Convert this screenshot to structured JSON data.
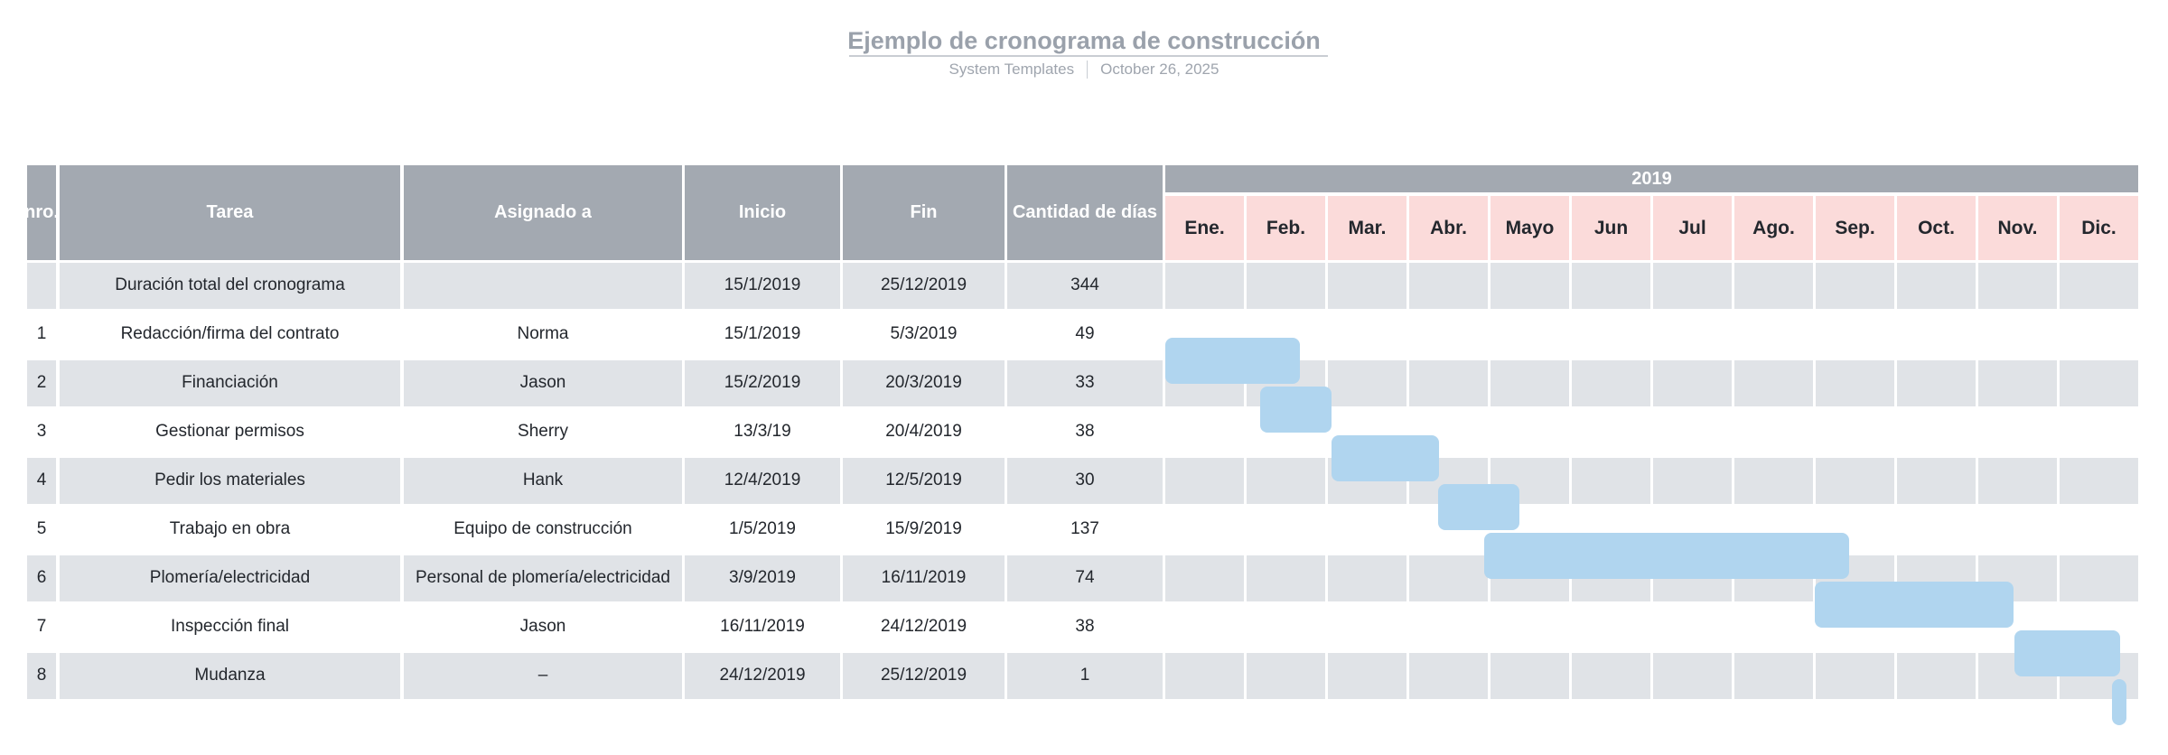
{
  "header": {
    "title": "Ejemplo de cronograma de construcción",
    "byline": "System Templates",
    "date": "October 26, 2025"
  },
  "colors": {
    "header_bg": "#a3a9b1",
    "header_text": "#ffffff",
    "month_bg": "#fbdbda",
    "row_alt_bg": "#e0e3e7",
    "bar": "#b0d5ef",
    "title_text": "#9aa1ab",
    "subtitle_text": "#9fa5ae",
    "divider": "#c9cdd3",
    "body_text": "#23272d"
  },
  "chart_data": {
    "type": "gantt",
    "title": "Ejemplo de cronograma de construcción",
    "year_label": "2019",
    "columns": [
      "nro.",
      "Tarea",
      "Asignado a",
      "Inicio",
      "Fin",
      "Cantidad de días"
    ],
    "months": [
      "Ene.",
      "Feb.",
      "Mar.",
      "Abr.",
      "Mayo",
      "Jun",
      "Jul",
      "Ago.",
      "Sep.",
      "Oct.",
      "Nov.",
      "Dic."
    ],
    "rows": [
      {
        "nro": "",
        "tarea": "Duración total del cronograma",
        "asignado": "",
        "inicio": "15/1/2019",
        "fin": "25/12/2019",
        "dias": "344",
        "bar": null
      },
      {
        "nro": "1",
        "tarea": "Redacción/firma del contrato",
        "asignado": "Norma",
        "inicio": "15/1/2019",
        "fin": "5/3/2019",
        "dias": "49",
        "bar": {
          "start_month": 0.0,
          "end_month": 1.66
        }
      },
      {
        "nro": "2",
        "tarea": "Financiación",
        "asignado": "Jason",
        "inicio": "15/2/2019",
        "fin": "20/3/2019",
        "dias": "33",
        "bar": {
          "start_month": 1.17,
          "end_month": 2.04
        }
      },
      {
        "nro": "3",
        "tarea": "Gestionar permisos",
        "asignado": "Sherry",
        "inicio": "13/3/19",
        "fin": "20/4/2019",
        "dias": "38",
        "bar": {
          "start_month": 2.04,
          "end_month": 3.37
        }
      },
      {
        "nro": "4",
        "tarea": "Pedir los materiales",
        "asignado": "Hank",
        "inicio": "12/4/2019",
        "fin": "12/5/2019",
        "dias": "30",
        "bar": {
          "start_month": 3.36,
          "end_month": 4.36
        }
      },
      {
        "nro": "5",
        "tarea": "Trabajo en obra",
        "asignado": "Equipo de construcción",
        "inicio": "1/5/2019",
        "fin": "15/9/2019",
        "dias": "137",
        "bar": {
          "start_month": 3.92,
          "end_month": 8.41
        }
      },
      {
        "nro": "6",
        "tarea": "Plomería/electricidad",
        "asignado": "Personal de plomería/electricidad",
        "inicio": "3/9/2019",
        "fin": "16/11/2019",
        "dias": "74",
        "bar": {
          "start_month": 7.99,
          "end_month": 10.43
        }
      },
      {
        "nro": "7",
        "tarea": "Inspección final",
        "asignado": "Jason",
        "inicio": "16/11/2019",
        "fin": "24/12/2019",
        "dias": "38",
        "bar": {
          "start_month": 10.44,
          "end_month": 11.74
        }
      },
      {
        "nro": "8",
        "tarea": "Mudanza",
        "asignado": "–",
        "inicio": "24/12/2019",
        "fin": "25/12/2019",
        "dias": "1",
        "bar": {
          "start_month": 11.64,
          "end_month": 11.82
        }
      }
    ]
  }
}
